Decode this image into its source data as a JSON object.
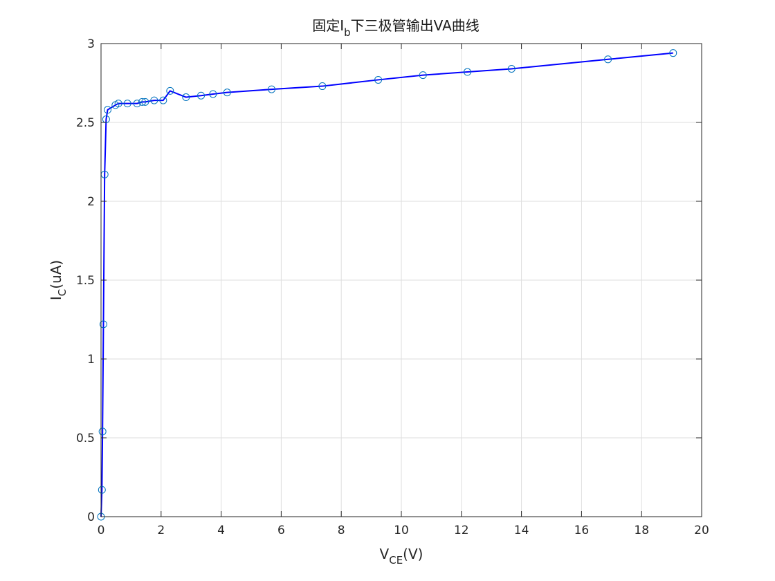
{
  "chart_data": {
    "type": "line",
    "title": {
      "before_sub": "固定I",
      "sub": "b",
      "after_sub": "下三极管输出VA曲线"
    },
    "xlabel": {
      "main": "V",
      "sub": "CE",
      "rest": "(V)"
    },
    "ylabel": {
      "main": "I",
      "sub": "C",
      "rest": "(uA)"
    },
    "xlim": [
      0,
      20
    ],
    "ylim": [
      0,
      3
    ],
    "xticks": [
      0,
      2,
      4,
      6,
      8,
      10,
      12,
      14,
      16,
      18,
      20
    ],
    "yticks": [
      0,
      0.5,
      1,
      1.5,
      2,
      2.5,
      3
    ],
    "xtick_labels": [
      "0",
      "2",
      "4",
      "6",
      "8",
      "10",
      "12",
      "14",
      "16",
      "18",
      "20"
    ],
    "ytick_labels": [
      "0",
      "0.5",
      "1",
      "1.5",
      "2",
      "2.5",
      "3"
    ],
    "grid": true,
    "series": [
      {
        "line_color": "#0000ff",
        "marker": "circle",
        "marker_color": "#0072bd",
        "x": [
          0.0,
          0.03,
          0.05,
          0.08,
          0.12,
          0.17,
          0.22,
          0.48,
          0.58,
          0.88,
          1.2,
          1.37,
          1.47,
          1.77,
          2.07,
          2.3,
          2.83,
          3.33,
          3.73,
          4.2,
          5.68,
          7.37,
          9.23,
          10.72,
          12.2,
          13.67,
          16.88,
          19.05
        ],
        "y": [
          0.0,
          0.17,
          0.54,
          1.22,
          2.17,
          2.52,
          2.58,
          2.61,
          2.62,
          2.62,
          2.62,
          2.63,
          2.63,
          2.64,
          2.64,
          2.7,
          2.66,
          2.67,
          2.68,
          2.69,
          2.71,
          2.73,
          2.77,
          2.8,
          2.82,
          2.84,
          2.9,
          2.94
        ]
      }
    ]
  }
}
